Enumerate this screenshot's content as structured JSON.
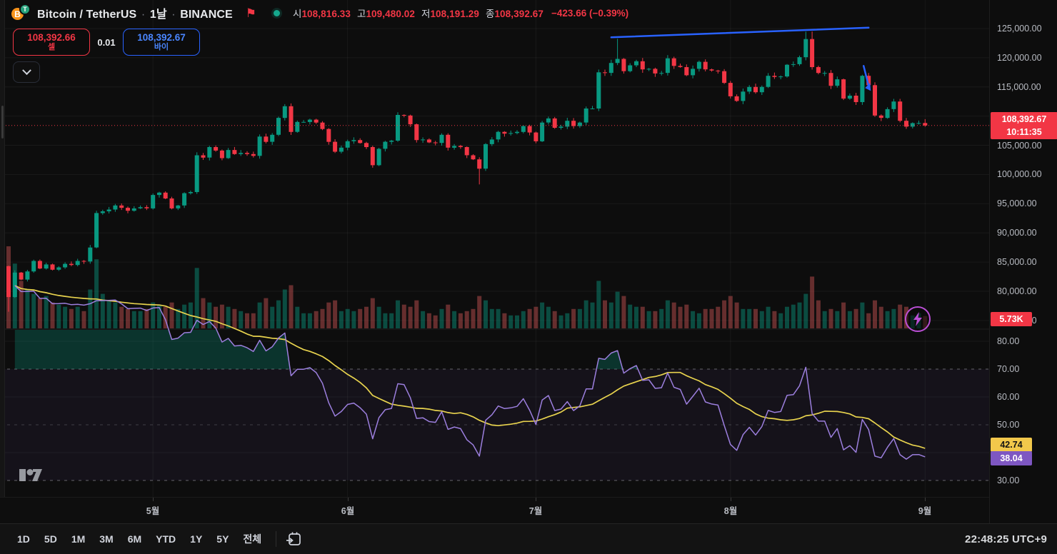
{
  "header": {
    "symbol_title": "Bitcoin / TetherUS",
    "separator": "·",
    "interval": "1날",
    "exchange": "BINANCE",
    "btc_glyph": "B",
    "usdt_glyph": "T",
    "flag_glyph": "⚑",
    "ohlc": {
      "open_label": "시",
      "open": "108,816.33",
      "high_label": "고",
      "high": "109,480.02",
      "low_label": "저",
      "low": "108,191.29",
      "close_label": "종",
      "close": "108,392.67",
      "change": "−423.66 (−0.39%)"
    }
  },
  "trade_panel": {
    "sell_price": "108,392.66",
    "sell_label": "셀",
    "spread": "0.01",
    "buy_price": "108,392.67",
    "buy_label": "바이"
  },
  "price_axis": {
    "last_price_label": "108,392.67",
    "last_time_label": "10:11:35",
    "volume_label": "5.73K",
    "rsi_ma_value_label": "42.74",
    "rsi_value_label": "38.04"
  },
  "toolbar": {
    "ranges": [
      "1D",
      "5D",
      "1M",
      "3M",
      "6M",
      "YTD",
      "1Y",
      "5Y",
      "전체"
    ],
    "clock": "22:48:25 UTC+9"
  },
  "chart_data": {
    "type": "candlestick",
    "title": "Bitcoin / TetherUS · 1날 · BINANCE",
    "panes": [
      "price+volume",
      "rsi"
    ],
    "price_ticks": [
      125000,
      120000,
      115000,
      110000,
      105000,
      100000,
      95000,
      90000,
      85000,
      80000,
      75000
    ],
    "rsi_ticks": [
      80,
      70,
      60,
      50,
      40,
      30
    ],
    "month_ticks": [
      {
        "label": "5월",
        "index": 23
      },
      {
        "label": "6월",
        "index": 54
      },
      {
        "label": "7월",
        "index": 84
      },
      {
        "label": "8월",
        "index": 115
      },
      {
        "label": "9월",
        "index": 146
      }
    ],
    "first_open": 84300,
    "closes": [
      79000,
      83200,
      82000,
      83400,
      85200,
      83900,
      84600,
      83700,
      84100,
      84700,
      84500,
      85200,
      85100,
      87500,
      93400,
      93700,
      94000,
      94700,
      94300,
      93800,
      94200,
      94400,
      94200,
      96500,
      96900,
      95900,
      94200,
      94700,
      96800,
      97000,
      103300,
      102900,
      104700,
      104100,
      102800,
      104200,
      103500,
      103700,
      103500,
      103200,
      106500,
      105600,
      106800,
      109700,
      111700,
      107300,
      109000,
      109000,
      109400,
      108900,
      107800,
      105600,
      103900,
      104600,
      105700,
      105900,
      105400,
      104700,
      101600,
      104400,
      105600,
      105800,
      110200,
      110100,
      108600,
      105900,
      106000,
      105500,
      105400,
      106800,
      104600,
      104900,
      104700,
      103300,
      102600,
      101000,
      105200,
      106000,
      107300,
      107000,
      107100,
      107300,
      108300,
      107200,
      105700,
      108900,
      109600,
      108000,
      108200,
      109200,
      108300,
      108900,
      111300,
      111300,
      117500,
      117400,
      119100,
      119800,
      117700,
      118700,
      119400,
      118000,
      118100,
      117300,
      117400,
      119900,
      118600,
      118400,
      117000,
      118100,
      119300,
      118000,
      117800,
      117700,
      115700,
      113400,
      112600,
      114200,
      115000,
      114100,
      115000,
      116900,
      116700,
      116800,
      118800,
      118900,
      120100,
      123200,
      118400,
      117400,
      117400,
      115200,
      116300,
      113000,
      113500,
      112400,
      116900,
      115300,
      110100,
      109700,
      111200,
      112500,
      109200,
      108200,
      108800,
      108816.33,
      108392.67
    ],
    "overrides": {
      "0": {
        "low": 76500
      },
      "44": {
        "high": 112050
      },
      "75": {
        "low": 98300
      },
      "97": {
        "high": 123250
      },
      "127": {
        "high": 124480
      },
      "128": {
        "high": 124500
      },
      "146": {
        "high": 109480.02,
        "low": 108191.29
      }
    },
    "volumes_k": [
      38,
      30,
      22,
      18,
      16,
      14,
      15,
      12,
      11,
      10,
      9,
      10,
      8,
      18,
      32,
      16,
      13,
      12,
      10,
      9,
      8,
      8,
      9,
      12,
      11,
      10,
      12,
      9,
      11,
      12,
      28,
      14,
      12,
      10,
      11,
      10,
      9,
      8,
      7,
      7,
      12,
      14,
      10,
      13,
      18,
      20,
      10,
      7,
      7,
      8,
      9,
      12,
      13,
      8,
      9,
      8,
      9,
      10,
      14,
      10,
      7,
      7,
      13,
      11,
      10,
      13,
      8,
      7,
      6,
      9,
      11,
      8,
      7,
      8,
      9,
      15,
      13,
      9,
      9,
      7,
      6,
      6,
      8,
      9,
      10,
      12,
      10,
      8,
      6,
      7,
      9,
      9,
      13,
      12,
      22,
      13,
      12,
      17,
      15,
      11,
      10,
      10,
      8,
      8,
      9,
      13,
      12,
      10,
      11,
      8,
      7,
      9,
      9,
      10,
      13,
      15,
      12,
      9,
      9,
      9,
      8,
      10,
      8,
      7,
      10,
      11,
      12,
      16,
      24,
      13,
      8,
      9,
      8,
      12,
      8,
      9,
      12,
      7,
      13,
      10,
      8,
      9,
      11,
      10,
      6,
      7,
      5.73
    ],
    "last_price": 108392.67,
    "rsi_last": 38.04,
    "rsi_ma_last": 42.74,
    "trendline": {
      "from_index": 96,
      "from_price": 123500,
      "to_index": 137,
      "to_price": 125150
    },
    "arrow": {
      "index": 137,
      "from_price": 118600,
      "to_price": 114700
    },
    "colors": {
      "up": "#089981",
      "down": "#F23645",
      "volume_up": "rgba(8,153,129,0.45)",
      "volume_down": "rgba(192,80,80,0.5)",
      "rsi": "#9C7FDE",
      "rsi_ma": "#E8D34E",
      "rsi_band": "rgba(126,87,194,0.08)",
      "overbought_fill": "rgba(8,153,129,0.28)",
      "trendline": "#2962FF",
      "grid": "rgba(255,255,255,0.05)",
      "dashed_level": "rgba(240,243,250,0.38)",
      "dashed_mid": "rgba(240,243,250,0.20)"
    }
  }
}
